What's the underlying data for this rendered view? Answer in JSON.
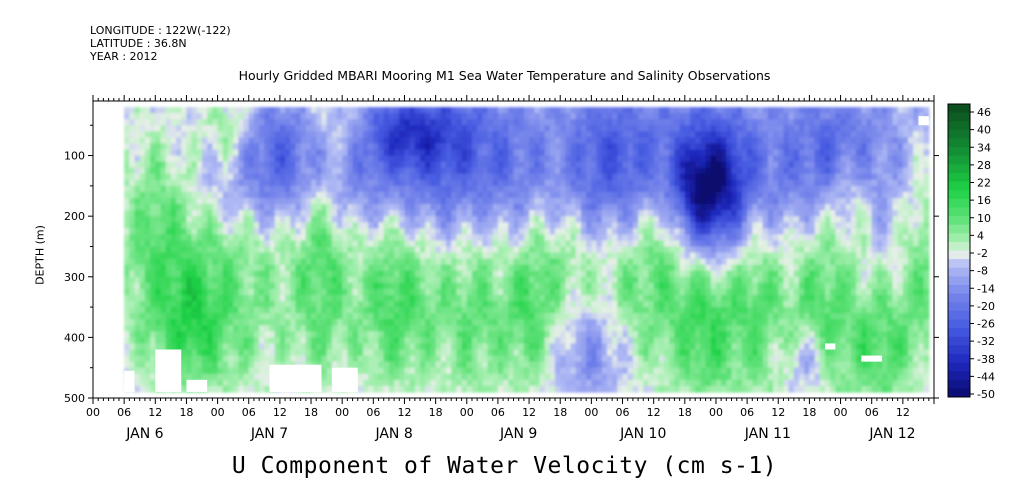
{
  "header": {
    "longitude": "LONGITUDE : 122W(-122)",
    "latitude": "LATITUDE : 36.8N",
    "year": "YEAR : 2012"
  },
  "chart_data": {
    "type": "heatmap",
    "title": "Hourly Gridded MBARI Mooring M1 Sea Water Temperature and Salinity Observations",
    "xlabel": "U Component of Water Velocity (cm s-1)",
    "ylabel": "DEPTH (m)",
    "y_ticks": [
      "100",
      "200",
      "300",
      "400",
      "500"
    ],
    "y_tick_values": [
      100,
      200,
      300,
      400,
      500
    ],
    "ylim": [
      500,
      10
    ],
    "data_depth_range": [
      20,
      490
    ],
    "x_hour_ticks": [
      "00",
      "06",
      "12",
      "18",
      "00",
      "06",
      "12",
      "18",
      "00",
      "06",
      "12",
      "18",
      "00",
      "06",
      "12",
      "18",
      "00",
      "06",
      "12",
      "18",
      "00",
      "06",
      "12",
      "18",
      "00",
      "06",
      "12"
    ],
    "x_day_labels": [
      "JAN 6",
      "JAN 7",
      "JAN 8",
      "JAN 9",
      "JAN 10",
      "JAN 11",
      "JAN 12"
    ],
    "time_range_hours": [
      0,
      162
    ],
    "data_start_hour": 6,
    "colorbar": {
      "labels": [
        "46",
        "40",
        "34",
        "28",
        "22",
        "16",
        "10",
        "4",
        "-2",
        "-8",
        "-14",
        "-20",
        "-26",
        "-32",
        "-38",
        "-44",
        "-50"
      ],
      "min": -50,
      "max": 52,
      "colors": {
        "deep_negative": "#0b0b6e",
        "negative": "#3b4fd8",
        "slight_negative": "#9aa6f0",
        "zero": "#e8f0e8",
        "slight_positive": "#8de79a",
        "positive": "#1fd84a",
        "deep_positive": "#0b4a1e"
      }
    },
    "grid": false
  }
}
